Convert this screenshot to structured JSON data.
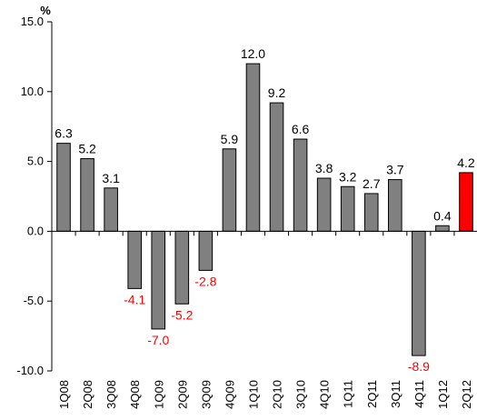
{
  "chart_data": {
    "type": "bar",
    "ylabel": "%",
    "ylim": [
      -10,
      15
    ],
    "y_ticks": [
      15,
      10,
      5,
      0,
      -5,
      -10
    ],
    "y_tick_labels": [
      "15.0",
      "10.0",
      "5.0",
      "0.0",
      "-5.0",
      "-10.0"
    ],
    "categories": [
      "1Q08",
      "2Q08",
      "3Q08",
      "4Q08",
      "1Q09",
      "2Q09",
      "3Q09",
      "4Q09",
      "1Q10",
      "2Q10",
      "3Q10",
      "4Q10",
      "1Q11",
      "2Q11",
      "3Q11",
      "4Q11",
      "1Q12",
      "2Q12"
    ],
    "values": [
      6.3,
      5.2,
      3.1,
      -4.1,
      -7.0,
      -5.2,
      -2.8,
      5.9,
      12.0,
      9.2,
      6.6,
      3.8,
      3.2,
      2.7,
      3.7,
      -8.9,
      0.4,
      4.2
    ],
    "data_labels": [
      "6.3",
      "5.2",
      "3.1",
      "-4.1",
      "-7.0",
      "-5.2",
      "-2.8",
      "5.9",
      "12.0",
      "9.2",
      "6.6",
      "3.8",
      "3.2",
      "2.7",
      "3.7",
      "-8.9",
      "0.4",
      "4.2"
    ],
    "highlight_index": 17,
    "grid": false,
    "legend": "none",
    "colors": {
      "bar_default": "#808080",
      "bar_highlight": "#ff0000",
      "bar_stroke": "#000000",
      "negative_label": "#ff0000",
      "positive_label": "#000000",
      "axis": "#000000"
    }
  }
}
